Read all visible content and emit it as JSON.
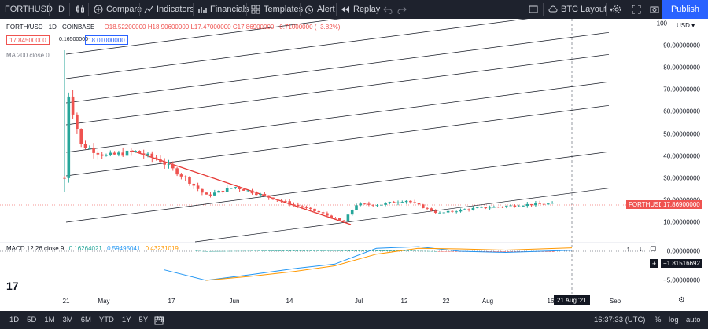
{
  "toolbar": {
    "symbol": "FORTHUSD",
    "interval": "D",
    "compare": "Compare",
    "indicators": "Indicators",
    "financials": "Financials",
    "templates": "Templates",
    "alert": "Alert",
    "replay": "Replay",
    "layout": "BTC Layout",
    "publish": "Publish"
  },
  "legend": {
    "pair": "FORTH/USD · 1D · COINBASE",
    "o": "O18.52200000",
    "h": "H18.90600000",
    "l": "L17.47000000",
    "c": "C17.86900000",
    "change": "−0.71000000 (−3.82%)",
    "bid": "17.84500000",
    "spread": "0.16500000",
    "ask": "18.01000000",
    "ma": "MA 200 close 0"
  },
  "macd": {
    "label": "MACD 12 26 close 9",
    "v1": "0.16264021",
    "v2": "0.59495041",
    "v3": "0.43231019"
  },
  "price_axis": {
    "currency": "USD",
    "ticks": [
      "100",
      "90.00000000",
      "80.00000000",
      "70.00000000",
      "60.00000000",
      "50.00000000",
      "40.00000000",
      "30.00000000",
      "20.00000000",
      "10.00000000"
    ],
    "macd_ticks": [
      "0.00000000",
      "−5.00000000"
    ],
    "symbol_tag": "FORTHUSD",
    "last_price": "17.86900000",
    "macd_tag": "−1.81516692"
  },
  "time_axis": {
    "ticks": [
      "21",
      "May",
      "17",
      "Jun",
      "14",
      "Jul",
      "12",
      "22",
      "Aug",
      "16",
      "Sep"
    ],
    "crosshair_date": "21 Aug '21"
  },
  "bottombar": {
    "ranges": [
      "1D",
      "5D",
      "1M",
      "3M",
      "6M",
      "YTD",
      "1Y",
      "5Y",
      "All"
    ],
    "clock": "16:37:33 (UTC)",
    "percent": "%",
    "log": "log",
    "auto": "auto"
  },
  "colors": {
    "up": "#26a69a",
    "down": "#ef5350",
    "macd_line": "#2196f3",
    "signal_line": "#ff9800",
    "trend": "#e53935",
    "publish": "#2962ff"
  },
  "chart_data": {
    "type": "candlestick",
    "symbol": "FORTH/USD",
    "exchange": "COINBASE",
    "interval": "1D",
    "ohlc_last": {
      "open": 18.522,
      "high": 18.906,
      "low": 17.47,
      "close": 17.869
    },
    "ylim": [
      0,
      100
    ],
    "price_path": [
      [
        "2021-04-21",
        30
      ],
      [
        "2021-04-22",
        68
      ],
      [
        "2021-04-25",
        45
      ],
      [
        "2021-05-01",
        40
      ],
      [
        "2021-05-08",
        42
      ],
      [
        "2021-05-14",
        38
      ],
      [
        "2021-05-20",
        30
      ],
      [
        "2021-05-25",
        22
      ],
      [
        "2021-06-01",
        26
      ],
      [
        "2021-06-08",
        22
      ],
      [
        "2021-06-15",
        18
      ],
      [
        "2021-06-22",
        14
      ],
      [
        "2021-06-27",
        10
      ],
      [
        "2021-06-30",
        18
      ],
      [
        "2021-07-06",
        18
      ],
      [
        "2021-07-12",
        20
      ],
      [
        "2021-07-20",
        14
      ],
      [
        "2021-07-27",
        16
      ],
      [
        "2021-08-03",
        17
      ],
      [
        "2021-08-10",
        18
      ],
      [
        "2021-08-18",
        18.5
      ],
      [
        "2021-08-21",
        17.87
      ]
    ],
    "macd": [
      [
        "2021-05-15",
        -3.2
      ],
      [
        "2021-05-25",
        -5.0
      ],
      [
        "2021-06-05",
        -4.0
      ],
      [
        "2021-06-15",
        -3.0
      ],
      [
        "2021-06-25",
        -2.2
      ],
      [
        "2021-07-05",
        0.5
      ],
      [
        "2021-07-15",
        0.8
      ],
      [
        "2021-07-25",
        0.0
      ],
      [
        "2021-08-05",
        -0.2
      ],
      [
        "2021-08-21",
        0.16
      ]
    ],
    "signal": [
      [
        "2021-05-25",
        -5.0
      ],
      [
        "2021-06-05",
        -4.3
      ],
      [
        "2021-06-15",
        -3.5
      ],
      [
        "2021-06-25",
        -2.5
      ],
      [
        "2021-07-05",
        -0.5
      ],
      [
        "2021-07-15",
        0.5
      ],
      [
        "2021-07-25",
        0.4
      ],
      [
        "2021-08-05",
        0.2
      ],
      [
        "2021-08-21",
        0.59
      ]
    ]
  }
}
